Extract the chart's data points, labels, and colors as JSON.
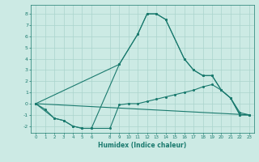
{
  "xlabel": "Humidex (Indice chaleur)",
  "bg_color": "#cceae4",
  "grid_color": "#aad4cc",
  "line_color": "#1a7a6e",
  "xlim": [
    -0.5,
    23.5
  ],
  "ylim": [
    -2.6,
    8.8
  ],
  "yticks": [
    -2,
    -1,
    0,
    1,
    2,
    3,
    4,
    5,
    6,
    7,
    8
  ],
  "xticks": [
    0,
    1,
    2,
    3,
    4,
    5,
    6,
    8,
    9,
    10,
    11,
    12,
    13,
    14,
    15,
    16,
    17,
    18,
    19,
    20,
    21,
    22,
    23
  ],
  "line1_x": [
    0,
    1,
    2,
    3,
    4,
    5,
    6,
    9,
    11,
    12,
    13,
    14,
    16,
    17,
    18,
    19,
    20,
    21,
    22,
    23
  ],
  "line1_y": [
    0,
    -0.5,
    -1.3,
    -1.5,
    -2.0,
    -2.2,
    -2.2,
    3.5,
    6.2,
    8.0,
    8.0,
    7.5,
    4.0,
    3.0,
    2.5,
    2.5,
    1.2,
    0.5,
    -1.0,
    -1.0
  ],
  "line2_x": [
    0,
    2,
    3,
    4,
    5,
    6,
    8,
    9,
    10,
    11,
    12,
    13,
    14,
    15,
    16,
    17,
    18,
    19,
    20,
    21,
    22,
    23
  ],
  "line2_y": [
    0,
    -1.3,
    -1.5,
    -2.0,
    -2.2,
    -2.2,
    -2.2,
    -0.1,
    0.0,
    0.0,
    0.2,
    0.4,
    0.6,
    0.8,
    1.0,
    1.2,
    1.5,
    1.7,
    1.2,
    0.5,
    -0.8,
    -1.0
  ],
  "line3_x": [
    0,
    9,
    11,
    12,
    13,
    14,
    16,
    17,
    18,
    19,
    20,
    21,
    22,
    23
  ],
  "line3_y": [
    0,
    3.5,
    6.2,
    8.0,
    8.0,
    7.5,
    4.0,
    3.0,
    2.5,
    2.5,
    1.2,
    0.5,
    -1.0,
    -1.0
  ],
  "line4_x": [
    0,
    23
  ],
  "line4_y": [
    0,
    -1.0
  ]
}
